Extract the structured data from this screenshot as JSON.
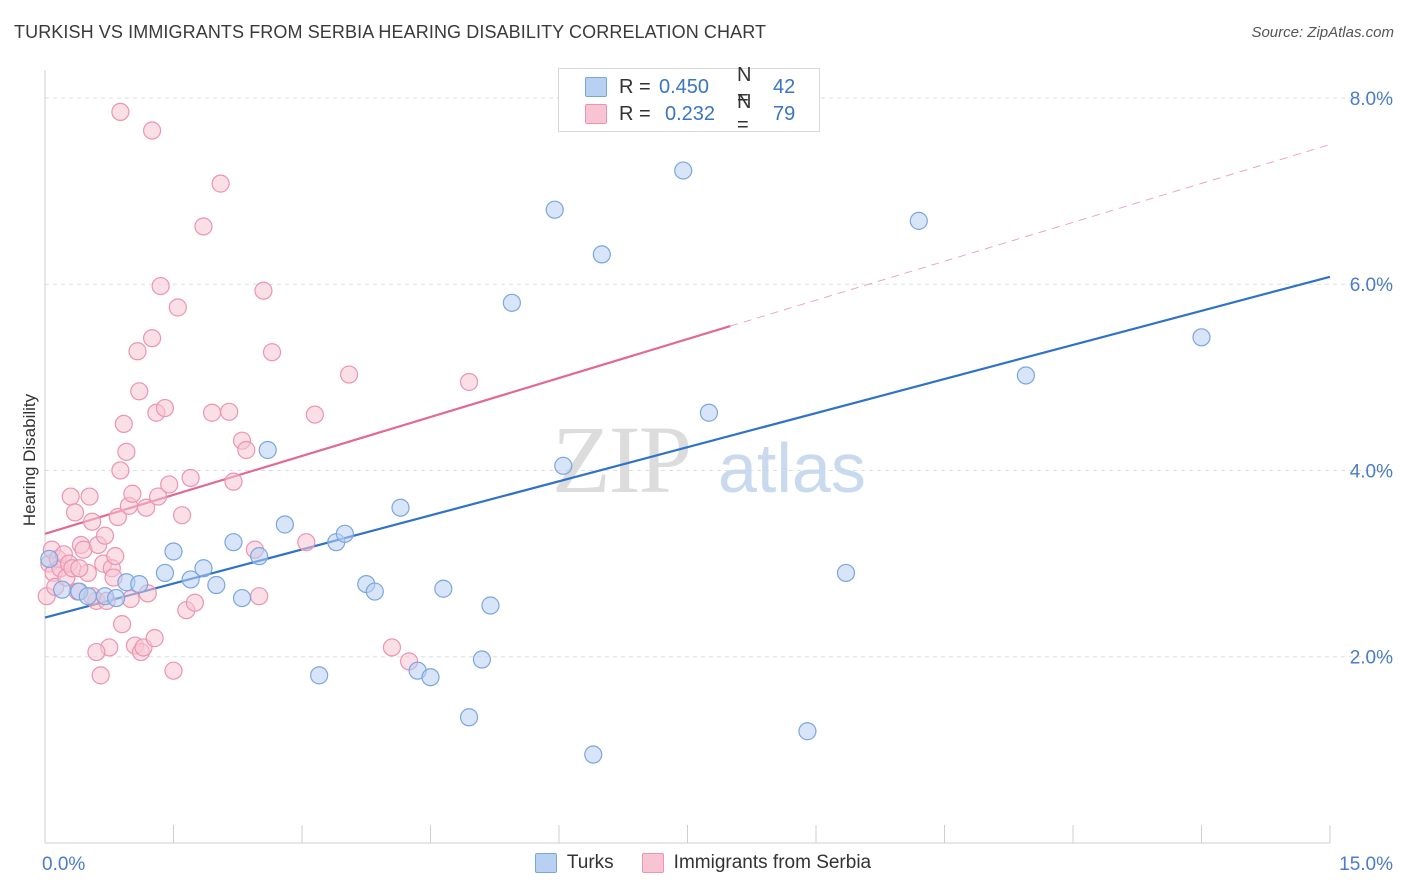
{
  "title": "TURKISH VS IMMIGRANTS FROM SERBIA HEARING DISABILITY CORRELATION CHART",
  "source": "Source: ZipAtlas.com",
  "watermark": {
    "zip": "ZIP",
    "atlas": "atlas"
  },
  "legend": {
    "turks": {
      "r_label": "R =",
      "r_value": "0.450",
      "n_label": "N =",
      "n_value": "42"
    },
    "serbia": {
      "r_label": "R =",
      "r_value": "0.232",
      "n_label": "N =",
      "n_value": "79"
    }
  },
  "colors": {
    "turks_fill": "#b8d0f2",
    "turks_stroke": "#7aa6e0",
    "turks_line": "#2f72c8",
    "serbia_fill": "#f8c4d4",
    "serbia_stroke": "#ec94b0",
    "serbia_line": "#e06a92",
    "tick_text": "#4a7cc9",
    "grid": "#dddddd"
  },
  "chart_data": {
    "type": "scatter",
    "title": "TURKISH VS IMMIGRANTS FROM SERBIA HEARING DISABILITY CORRELATION CHART",
    "xlabel": "",
    "ylabel": "Hearing Disability",
    "xlim": [
      0,
      15
    ],
    "ylim": [
      0,
      8.3
    ],
    "x_tick_labels": [
      "0.0%",
      "15.0%"
    ],
    "y_ticks": [
      2,
      4,
      6,
      8
    ],
    "y_tick_labels": [
      "2.0%",
      "4.0%",
      "6.0%",
      "8.0%"
    ],
    "grid": true,
    "legend_position": "bottom",
    "series": [
      {
        "name": "Turks",
        "r": 0.45,
        "n": 42,
        "trend": {
          "x0": 0,
          "y0": 2.42,
          "x1": 15,
          "y1": 6.08
        },
        "points": [
          [
            0.05,
            3.05
          ],
          [
            0.2,
            2.72
          ],
          [
            0.4,
            2.7
          ],
          [
            0.5,
            2.65
          ],
          [
            0.7,
            2.65
          ],
          [
            0.83,
            2.63
          ],
          [
            0.95,
            2.8
          ],
          [
            1.1,
            2.78
          ],
          [
            1.4,
            2.9
          ],
          [
            1.5,
            3.13
          ],
          [
            1.7,
            2.83
          ],
          [
            1.85,
            2.95
          ],
          [
            2.0,
            2.77
          ],
          [
            2.2,
            3.23
          ],
          [
            2.3,
            2.63
          ],
          [
            2.5,
            3.08
          ],
          [
            2.6,
            4.22
          ],
          [
            2.8,
            3.42
          ],
          [
            3.2,
            1.8
          ],
          [
            3.4,
            3.23
          ],
          [
            3.5,
            3.32
          ],
          [
            3.75,
            2.78
          ],
          [
            3.85,
            2.7
          ],
          [
            4.15,
            3.6
          ],
          [
            4.35,
            1.85
          ],
          [
            4.5,
            1.78
          ],
          [
            4.65,
            2.73
          ],
          [
            4.95,
            1.35
          ],
          [
            5.1,
            1.97
          ],
          [
            5.2,
            2.55
          ],
          [
            5.45,
            5.8
          ],
          [
            5.95,
            6.8
          ],
          [
            6.05,
            4.05
          ],
          [
            6.4,
            0.95
          ],
          [
            6.5,
            6.32
          ],
          [
            7.45,
            7.22
          ],
          [
            7.75,
            4.62
          ],
          [
            8.9,
            1.2
          ],
          [
            9.35,
            2.9
          ],
          [
            10.2,
            6.68
          ],
          [
            11.45,
            5.02
          ],
          [
            13.5,
            5.43
          ]
        ]
      },
      {
        "name": "Immigrants from Serbia",
        "r": 0.232,
        "n": 79,
        "trend": {
          "x0": 0,
          "y0": 3.32,
          "x1": 8.0,
          "y1": 5.55
        },
        "trend_extension": {
          "x0": 8.0,
          "y0": 5.55,
          "x1": 15,
          "y1": 7.5
        },
        "points": [
          [
            0.02,
            2.65
          ],
          [
            0.05,
            3.0
          ],
          [
            0.08,
            3.15
          ],
          [
            0.1,
            2.9
          ],
          [
            0.12,
            2.75
          ],
          [
            0.15,
            3.05
          ],
          [
            0.18,
            2.95
          ],
          [
            0.22,
            3.1
          ],
          [
            0.25,
            2.85
          ],
          [
            0.28,
            3.0
          ],
          [
            0.3,
            3.72
          ],
          [
            0.32,
            2.95
          ],
          [
            0.35,
            3.55
          ],
          [
            0.38,
            2.7
          ],
          [
            0.42,
            3.2
          ],
          [
            0.45,
            3.15
          ],
          [
            0.5,
            2.9
          ],
          [
            0.52,
            3.72
          ],
          [
            0.55,
            3.45
          ],
          [
            0.6,
            2.6
          ],
          [
            0.62,
            3.2
          ],
          [
            0.65,
            1.8
          ],
          [
            0.68,
            3.0
          ],
          [
            0.7,
            3.3
          ],
          [
            0.72,
            2.6
          ],
          [
            0.75,
            2.1
          ],
          [
            0.78,
            2.95
          ],
          [
            0.8,
            2.85
          ],
          [
            0.82,
            3.08
          ],
          [
            0.85,
            3.5
          ],
          [
            0.88,
            4.0
          ],
          [
            0.9,
            2.35
          ],
          [
            0.92,
            4.5
          ],
          [
            0.95,
            4.2
          ],
          [
            0.98,
            3.62
          ],
          [
            1.0,
            2.62
          ],
          [
            1.02,
            3.75
          ],
          [
            1.05,
            2.12
          ],
          [
            1.08,
            5.28
          ],
          [
            1.1,
            4.85
          ],
          [
            1.12,
            2.05
          ],
          [
            1.15,
            2.1
          ],
          [
            1.18,
            3.6
          ],
          [
            1.2,
            2.68
          ],
          [
            1.25,
            5.42
          ],
          [
            1.28,
            2.2
          ],
          [
            1.3,
            4.62
          ],
          [
            1.32,
            3.72
          ],
          [
            1.35,
            5.98
          ],
          [
            1.4,
            4.67
          ],
          [
            1.45,
            3.85
          ],
          [
            1.5,
            1.85
          ],
          [
            1.55,
            5.75
          ],
          [
            1.6,
            3.52
          ],
          [
            1.65,
            2.5
          ],
          [
            1.7,
            3.92
          ],
          [
            1.75,
            2.58
          ],
          [
            1.85,
            6.62
          ],
          [
            1.95,
            4.62
          ],
          [
            2.05,
            7.08
          ],
          [
            2.15,
            4.63
          ],
          [
            2.2,
            3.88
          ],
          [
            2.3,
            4.32
          ],
          [
            2.35,
            4.22
          ],
          [
            2.45,
            3.15
          ],
          [
            2.5,
            2.65
          ],
          [
            2.55,
            5.93
          ],
          [
            2.65,
            5.27
          ],
          [
            3.05,
            3.23
          ],
          [
            3.15,
            4.6
          ],
          [
            3.55,
            5.03
          ],
          [
            4.05,
            2.1
          ],
          [
            4.25,
            1.95
          ],
          [
            4.95,
            4.95
          ],
          [
            0.88,
            7.85
          ],
          [
            1.25,
            7.65
          ],
          [
            0.6,
            2.05
          ],
          [
            0.4,
            2.95
          ],
          [
            0.55,
            2.65
          ]
        ]
      }
    ]
  },
  "bottom_legend": {
    "turks": "Turks",
    "serbia": "Immigrants from Serbia"
  }
}
